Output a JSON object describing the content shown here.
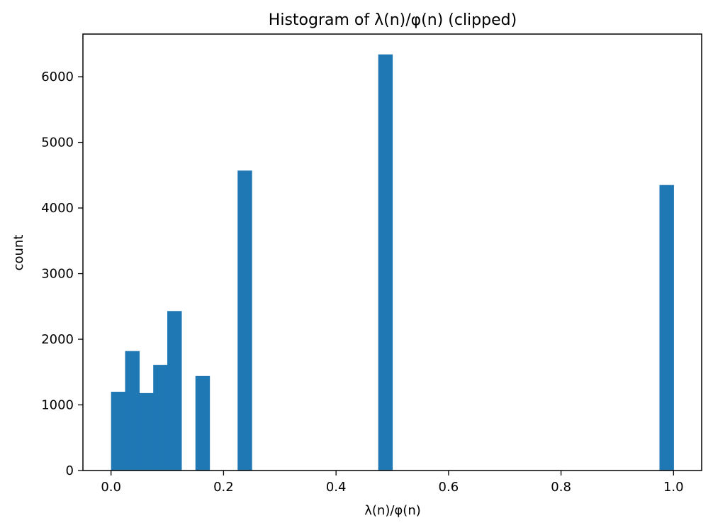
{
  "chart_data": {
    "type": "bar",
    "title": "Histogram of λ(n)/φ(n) (clipped)",
    "xlabel": "λ(n)/φ(n)",
    "ylabel": "count",
    "xlim": [
      -0.05,
      1.05
    ],
    "ylim": [
      0,
      6650
    ],
    "bin_width": 0.025,
    "bins": [
      {
        "x0": 0.0,
        "x1": 0.025,
        "count": 1200
      },
      {
        "x0": 0.025,
        "x1": 0.05,
        "count": 1820
      },
      {
        "x0": 0.05,
        "x1": 0.075,
        "count": 1180
      },
      {
        "x0": 0.075,
        "x1": 0.1,
        "count": 1610
      },
      {
        "x0": 0.1,
        "x1": 0.125,
        "count": 2430
      },
      {
        "x0": 0.15,
        "x1": 0.175,
        "count": 1440
      },
      {
        "x0": 0.225,
        "x1": 0.25,
        "count": 4570
      },
      {
        "x0": 0.475,
        "x1": 0.5,
        "count": 6340
      },
      {
        "x0": 0.975,
        "x1": 1.0,
        "count": 4350
      }
    ],
    "xticks": [
      "0.0",
      "0.2",
      "0.4",
      "0.6",
      "0.8",
      "1.0"
    ],
    "yticks": [
      "0",
      "1000",
      "2000",
      "3000",
      "4000",
      "5000",
      "6000"
    ],
    "bar_color": "#1f77b4",
    "grid": false,
    "legend": "none"
  }
}
